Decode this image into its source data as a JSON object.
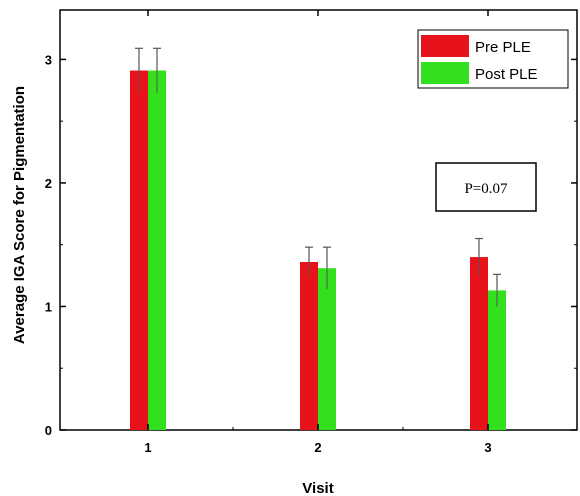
{
  "chart_data": {
    "type": "bar",
    "title": "",
    "xlabel": "Visit",
    "ylabel": "Average IGA Score for Pigmentation",
    "categories": [
      "1",
      "2",
      "3"
    ],
    "ylim": [
      0,
      3.4
    ],
    "yticks": [
      0,
      1,
      2,
      3
    ],
    "grid": false,
    "legend_position": "top-right",
    "series": [
      {
        "name": "Pre PLE",
        "color": "#e8121a",
        "values": [
          2.91,
          1.36,
          1.4
        ],
        "errors": [
          0.18,
          0.12,
          0.15
        ]
      },
      {
        "name": "Post PLE",
        "color": "#33e01e",
        "values": [
          2.91,
          1.31,
          1.13
        ],
        "errors": [
          0.18,
          0.17,
          0.13
        ]
      }
    ],
    "annotations": [
      {
        "text": "P=0.07"
      }
    ]
  }
}
